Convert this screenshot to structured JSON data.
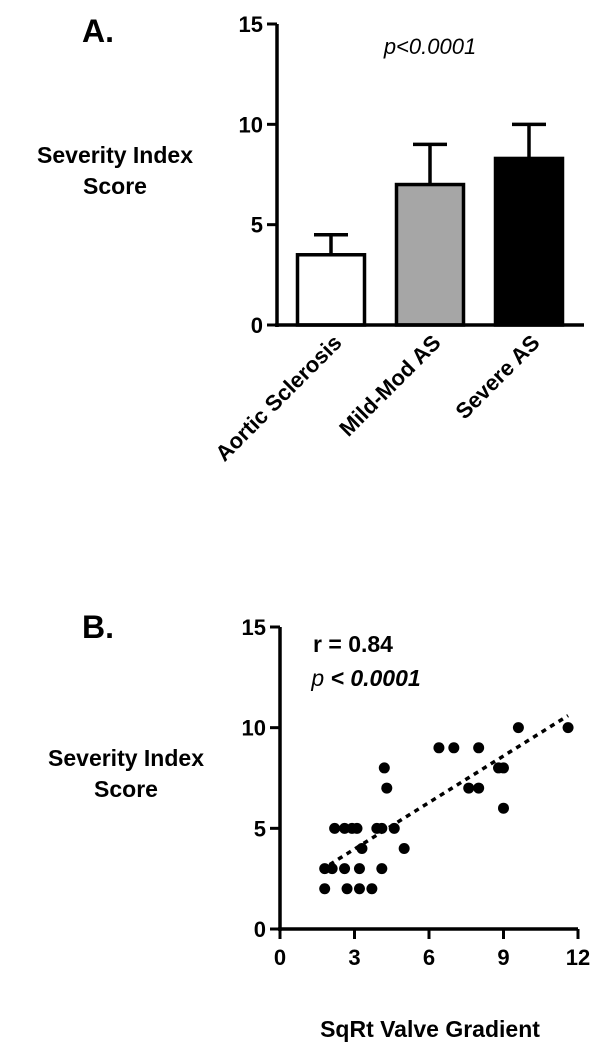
{
  "chart_data": [
    {
      "type": "bar",
      "panel_label": "A.",
      "ylabel_lines": [
        "Severity Index",
        "Score"
      ],
      "xlabel": "",
      "categories": [
        "Aortic Sclerosis",
        "Mild-Mod AS",
        "Severe AS"
      ],
      "values": [
        3.5,
        7.0,
        8.3
      ],
      "error_upper": [
        1.0,
        2.0,
        1.7
      ],
      "bar_colors": [
        "#ffffff",
        "#a6a6a6",
        "#000000"
      ],
      "ylim": [
        0,
        15
      ],
      "yticks": [
        0,
        5,
        10,
        15
      ],
      "annotation": "p<0.0001",
      "grid": false
    },
    {
      "type": "scatter",
      "panel_label": "B.",
      "ylabel_lines": [
        "Severity Index",
        "Score"
      ],
      "xlabel": "SqRt Valve Gradient",
      "xlim": [
        0,
        12
      ],
      "ylim": [
        0,
        15
      ],
      "xticks": [
        0,
        3,
        6,
        9,
        12
      ],
      "yticks": [
        0,
        5,
        10,
        15
      ],
      "annotation_r": "r = 0.84",
      "annotation_p_prefix": "p",
      "annotation_p_value": " < 0.0001",
      "grid": false,
      "points": [
        {
          "x": 1.8,
          "y": 3
        },
        {
          "x": 2.1,
          "y": 3
        },
        {
          "x": 2.6,
          "y": 3
        },
        {
          "x": 1.8,
          "y": 2
        },
        {
          "x": 2.7,
          "y": 2
        },
        {
          "x": 3.2,
          "y": 2
        },
        {
          "x": 3.7,
          "y": 2
        },
        {
          "x": 2.2,
          "y": 5
        },
        {
          "x": 2.6,
          "y": 5
        },
        {
          "x": 2.9,
          "y": 5
        },
        {
          "x": 3.1,
          "y": 5
        },
        {
          "x": 3.2,
          "y": 3
        },
        {
          "x": 3.3,
          "y": 4
        },
        {
          "x": 3.9,
          "y": 5
        },
        {
          "x": 4.1,
          "y": 5
        },
        {
          "x": 4.6,
          "y": 5
        },
        {
          "x": 4.1,
          "y": 3
        },
        {
          "x": 4.2,
          "y": 8
        },
        {
          "x": 4.3,
          "y": 7
        },
        {
          "x": 5.0,
          "y": 4
        },
        {
          "x": 6.4,
          "y": 9
        },
        {
          "x": 7.0,
          "y": 9
        },
        {
          "x": 7.6,
          "y": 7
        },
        {
          "x": 8.0,
          "y": 7
        },
        {
          "x": 8.0,
          "y": 9
        },
        {
          "x": 8.8,
          "y": 8
        },
        {
          "x": 9.0,
          "y": 8
        },
        {
          "x": 9.0,
          "y": 6
        },
        {
          "x": 9.6,
          "y": 10
        },
        {
          "x": 11.6,
          "y": 10
        }
      ],
      "fit_line": {
        "x": [
          2.0,
          11.6
        ],
        "y": [
          3.2,
          10.6
        ]
      }
    }
  ]
}
